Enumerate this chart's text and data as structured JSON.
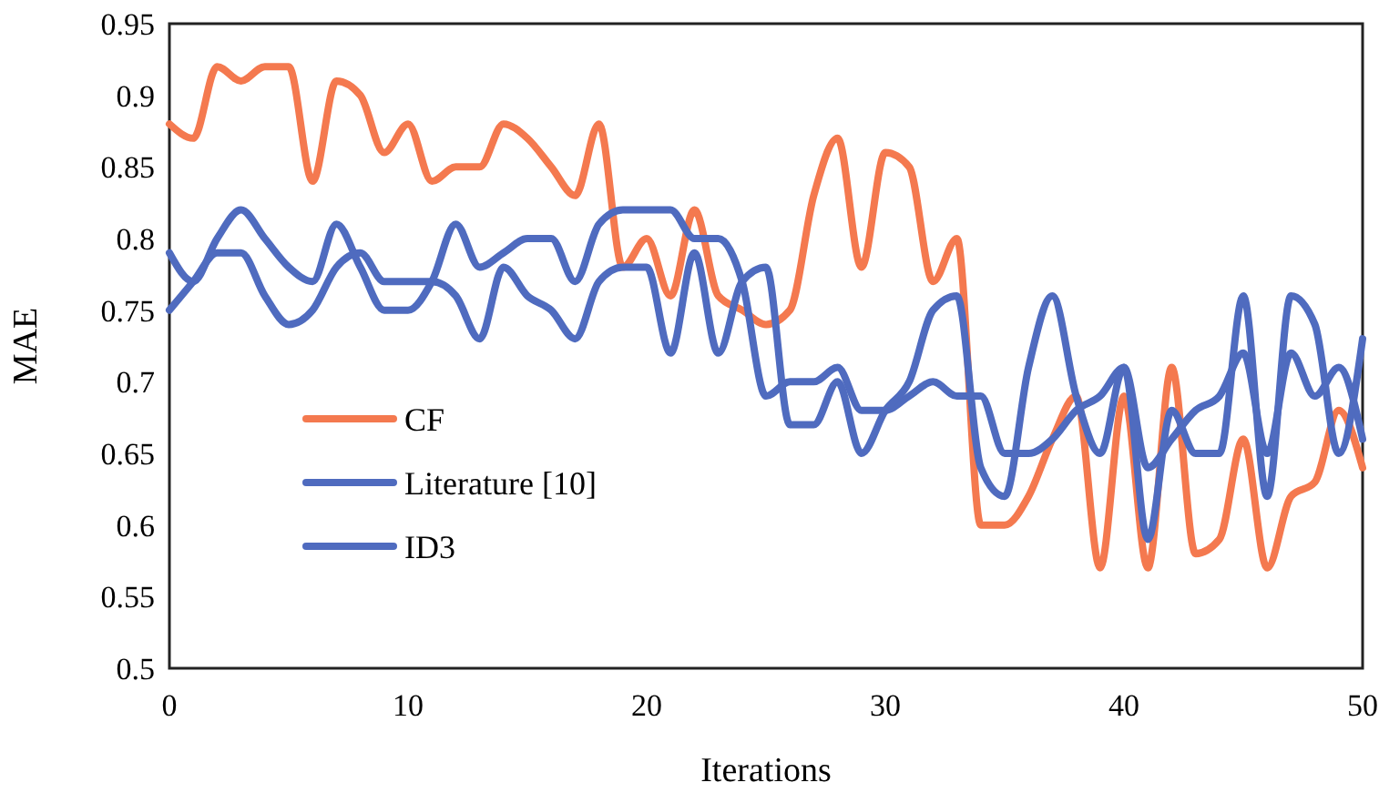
{
  "chart_data": {
    "type": "line",
    "xlabel": "Iterations",
    "ylabel": "MAE",
    "x": [
      0,
      1,
      2,
      3,
      4,
      5,
      6,
      7,
      8,
      9,
      10,
      11,
      12,
      13,
      14,
      15,
      16,
      17,
      18,
      19,
      20,
      21,
      22,
      23,
      24,
      25,
      26,
      27,
      28,
      29,
      30,
      31,
      32,
      33,
      34,
      35,
      36,
      37,
      38,
      39,
      40,
      41,
      42,
      43,
      44,
      45,
      46,
      47,
      48,
      49,
      50
    ],
    "xlim": [
      0,
      50
    ],
    "xticks": [
      0,
      10,
      20,
      30,
      40,
      50
    ],
    "ylim": [
      0.5,
      0.95
    ],
    "yticks": [
      0.5,
      0.55,
      0.6,
      0.65,
      0.7,
      0.75,
      0.8,
      0.85,
      0.9,
      0.95
    ],
    "grid": false,
    "legend": "bottom left",
    "line_style": "solid",
    "marker": "none",
    "series": [
      {
        "name": "CF",
        "color": "#f4794f",
        "values": [
          0.88,
          0.87,
          0.92,
          0.91,
          0.92,
          0.92,
          0.84,
          0.91,
          0.9,
          0.86,
          0.88,
          0.84,
          0.85,
          0.85,
          0.88,
          0.87,
          0.85,
          0.83,
          0.88,
          0.78,
          0.8,
          0.76,
          0.82,
          0.76,
          0.75,
          0.74,
          0.75,
          0.83,
          0.87,
          0.78,
          0.86,
          0.85,
          0.77,
          0.8,
          0.6,
          0.6,
          0.62,
          0.66,
          0.69,
          0.57,
          0.69,
          0.57,
          0.71,
          0.58,
          0.59,
          0.66,
          0.57,
          0.62,
          0.63,
          0.68,
          0.64
        ]
      },
      {
        "name": "Literature [10]",
        "color": "#4f6bbf",
        "values": [
          0.79,
          0.77,
          0.8,
          0.82,
          0.8,
          0.78,
          0.77,
          0.81,
          0.78,
          0.75,
          0.75,
          0.77,
          0.81,
          0.78,
          0.79,
          0.8,
          0.8,
          0.77,
          0.81,
          0.82,
          0.82,
          0.82,
          0.8,
          0.8,
          0.77,
          0.69,
          0.7,
          0.7,
          0.71,
          0.68,
          0.68,
          0.69,
          0.7,
          0.69,
          0.69,
          0.65,
          0.65,
          0.66,
          0.68,
          0.69,
          0.71,
          0.64,
          0.66,
          0.68,
          0.69,
          0.72,
          0.65,
          0.72,
          0.69,
          0.71,
          0.66
        ]
      },
      {
        "name": "ID3",
        "color": "#4f6bbf",
        "values": [
          0.75,
          0.77,
          0.79,
          0.79,
          0.76,
          0.74,
          0.75,
          0.78,
          0.79,
          0.77,
          0.77,
          0.77,
          0.76,
          0.73,
          0.78,
          0.76,
          0.75,
          0.73,
          0.77,
          0.78,
          0.78,
          0.72,
          0.79,
          0.72,
          0.77,
          0.78,
          0.67,
          0.67,
          0.7,
          0.65,
          0.68,
          0.7,
          0.75,
          0.76,
          0.64,
          0.62,
          0.71,
          0.76,
          0.69,
          0.65,
          0.71,
          0.59,
          0.68,
          0.65,
          0.65,
          0.76,
          0.62,
          0.76,
          0.74,
          0.65,
          0.73
        ]
      }
    ]
  }
}
